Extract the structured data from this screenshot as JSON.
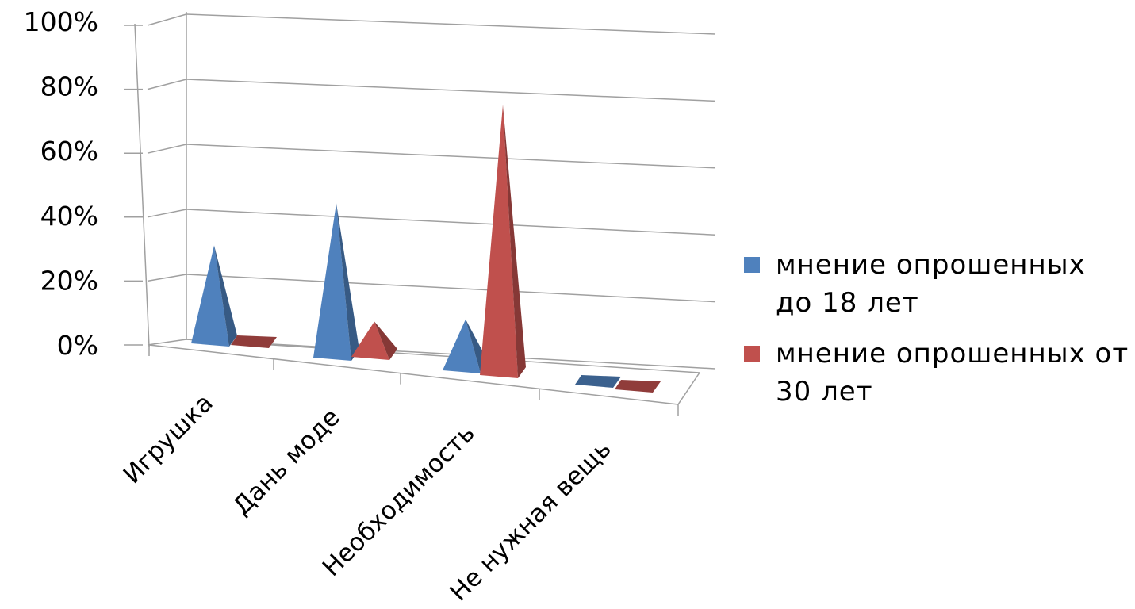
{
  "chart_data": {
    "type": "bar",
    "style": "3d-pyramid",
    "categories": [
      "Игрушка",
      "Дань моде",
      "Необходимость",
      "Не нужная вещь"
    ],
    "series": [
      {
        "name": "мнение опрошенных до 18 лет",
        "color": "#4F81BD",
        "values": [
          30,
          48,
          15,
          0
        ]
      },
      {
        "name": "мнение опрошенных от 30 лет",
        "color": "#C0504D",
        "values": [
          0,
          10,
          85,
          0
        ]
      }
    ],
    "yticks": [
      "0%",
      "20%",
      "40%",
      "60%",
      "80%",
      "100%"
    ],
    "ylim": [
      0,
      100
    ],
    "grid": true,
    "legend_position": "right"
  }
}
